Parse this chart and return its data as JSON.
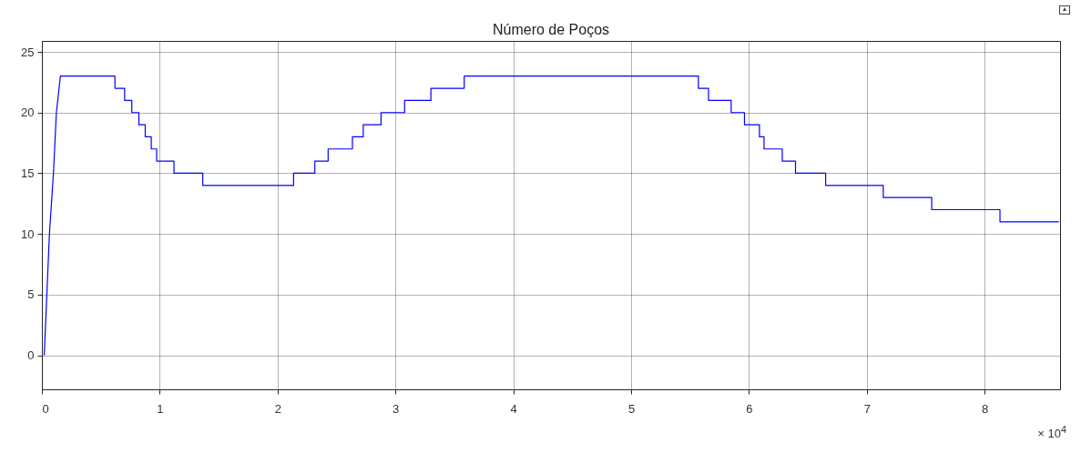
{
  "chart_data": {
    "type": "line",
    "title": "Número de Poços",
    "x": [
      0.02,
      0.064,
      0.098,
      0.123,
      0.157,
      0.62,
      0.62,
      0.702,
      0.702,
      0.763,
      0.763,
      0.823,
      0.823,
      0.877,
      0.877,
      0.928,
      0.928,
      0.974,
      0.974,
      1.121,
      1.121,
      1.365,
      1.365,
      2.136,
      2.136,
      2.316,
      2.316,
      2.429,
      2.429,
      2.635,
      2.635,
      2.727,
      2.727,
      2.878,
      2.878,
      3.078,
      3.078,
      3.301,
      3.301,
      3.584,
      3.584,
      5.571,
      5.571,
      5.657,
      5.657,
      5.849,
      5.849,
      5.962,
      5.962,
      6.089,
      6.089,
      6.128,
      6.128,
      6.283,
      6.283,
      6.395,
      6.395,
      6.651,
      6.651,
      7.14,
      7.14,
      7.551,
      7.551,
      8.13,
      8.13,
      8.63
    ],
    "series": [
      {
        "color": "#0000ff",
        "values": [
          0,
          10,
          15,
          20,
          23,
          23,
          22,
          22,
          21,
          21,
          20,
          20,
          19,
          19,
          18,
          18,
          17,
          17,
          16,
          16,
          15,
          15,
          14,
          14,
          15,
          15,
          16,
          16,
          17,
          17,
          18,
          18,
          19,
          19,
          20,
          20,
          21,
          21,
          22,
          22,
          23,
          23,
          22,
          22,
          21,
          21,
          20,
          20,
          19,
          19,
          18,
          18,
          17,
          17,
          16,
          16,
          15,
          15,
          14,
          14,
          13,
          13,
          12,
          12,
          11,
          11
        ]
      }
    ],
    "xlim": [
      0,
      8.64
    ],
    "xticks": [
      0,
      1,
      2,
      3,
      4,
      5,
      6,
      7,
      8
    ],
    "ylim": [
      -2.8,
      25.9
    ],
    "yticks": [
      0,
      5,
      10,
      15,
      20,
      25
    ],
    "grid": true,
    "marker": "none",
    "line_style": "solid",
    "annotations": [
      "× 10$^{4}$"
    ]
  }
}
